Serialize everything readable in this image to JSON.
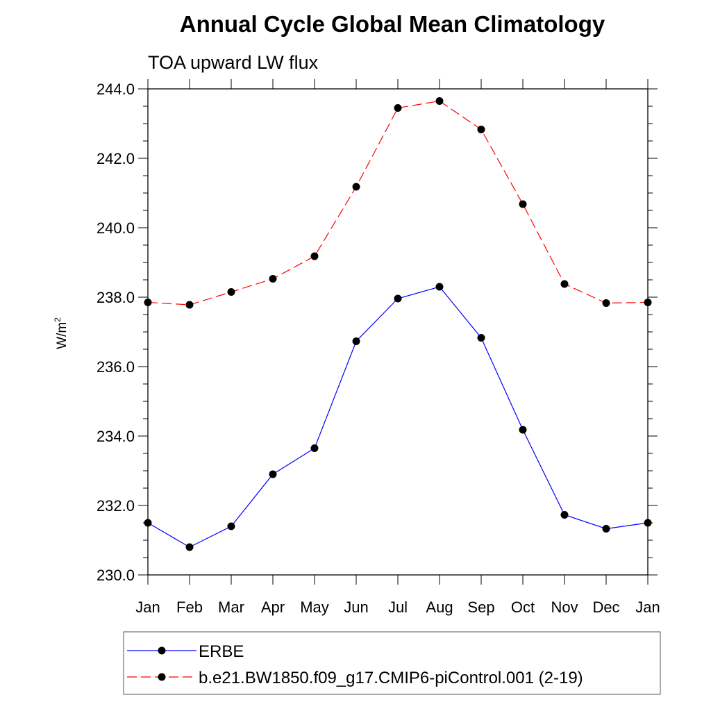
{
  "chart_data": {
    "type": "line",
    "title": "Annual Cycle Global Mean Climatology",
    "subtitle": "TOA upward LW flux",
    "xlabel": "",
    "ylabel_base": "W/m",
    "ylabel_sup": "2",
    "categories": [
      "Jan",
      "Feb",
      "Mar",
      "Apr",
      "May",
      "Jun",
      "Jul",
      "Aug",
      "Sep",
      "Oct",
      "Nov",
      "Dec",
      "Jan"
    ],
    "ylim": [
      230.0,
      244.0
    ],
    "yticks": [
      "230.0",
      "232.0",
      "234.0",
      "236.0",
      "238.0",
      "240.0",
      "242.0",
      "244.0"
    ],
    "grid": false,
    "legend_position": "bottom",
    "series": [
      {
        "name": "ERBE",
        "color": "#0000ff",
        "dash": "solid",
        "values": [
          231.5,
          230.8,
          231.4,
          232.9,
          233.65,
          236.73,
          237.96,
          238.3,
          236.83,
          234.18,
          231.73,
          231.33,
          231.5
        ]
      },
      {
        "name": "b.e21.BW1850.f09_g17.CMIP6-piControl.001 (2-19)",
        "color": "#ff0000",
        "dash": "dashed",
        "values": [
          237.85,
          237.78,
          238.15,
          238.53,
          239.18,
          241.18,
          243.45,
          243.65,
          242.83,
          240.68,
          238.38,
          237.83,
          237.85
        ]
      }
    ]
  }
}
